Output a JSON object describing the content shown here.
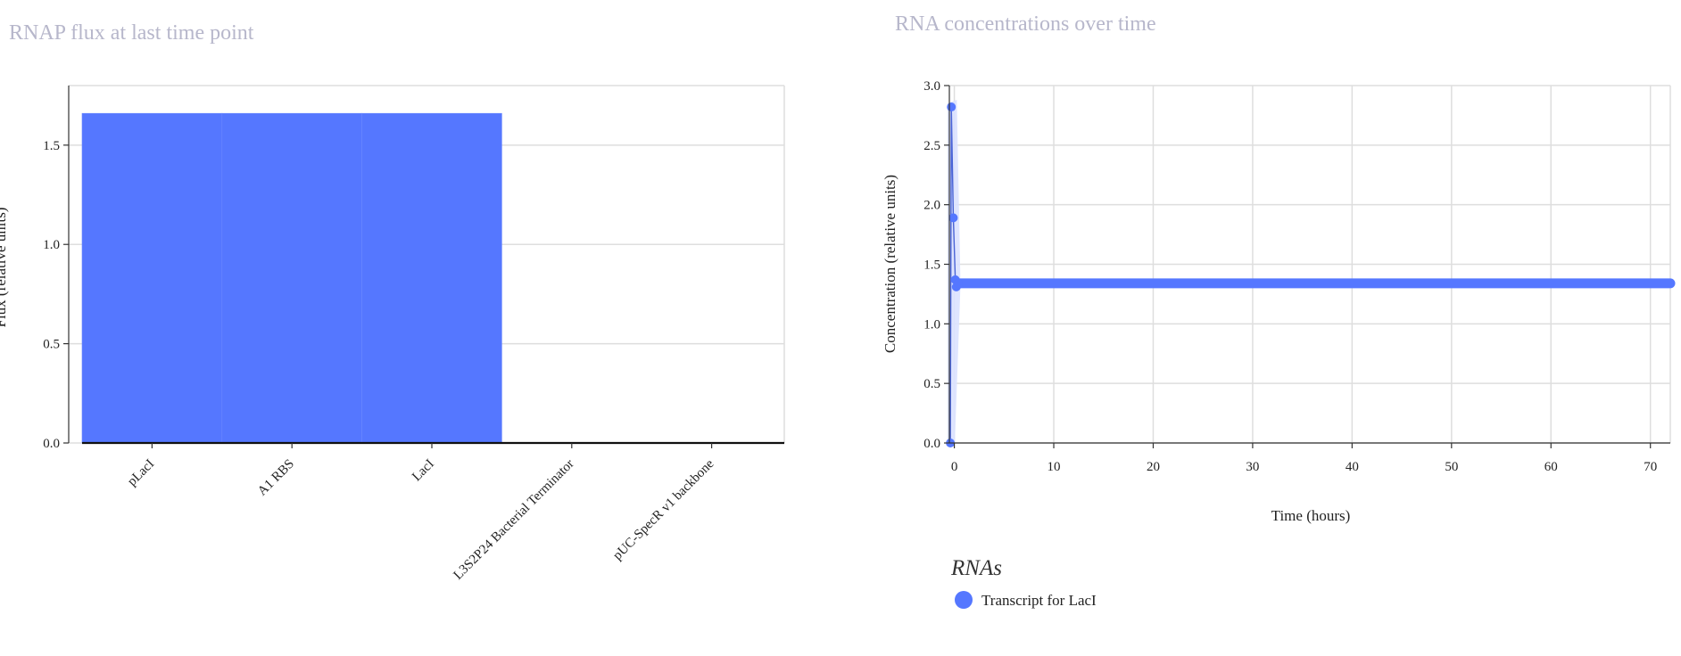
{
  "colors": {
    "accent": "#5577ff",
    "band": "#dbe2ff",
    "title": "#b7b7cb",
    "grid": "#dedede"
  },
  "chart_data": [
    {
      "type": "bar",
      "title": "RNAP flux at last time point",
      "xlabel": "",
      "ylabel": "Flux (relative units)",
      "categories": [
        "pLacI",
        "A1 RBS",
        "LacI",
        "L3S2P24 Bacterial Terminator",
        "pUC-SpecR v1 backbone"
      ],
      "values": [
        1.66,
        1.66,
        1.66,
        0,
        0
      ],
      "ylim": [
        0,
        1.8
      ],
      "yticks": [
        "0.0",
        "0.5",
        "1.0",
        "1.5"
      ],
      "grid": true
    },
    {
      "type": "line",
      "title": "RNA concentrations over time",
      "xlabel": "Time (hours)",
      "ylabel": "Concentration (relative units)",
      "xlim": [
        -0.5,
        72
      ],
      "ylim": [
        0,
        3.0
      ],
      "xticks": [
        "0",
        "10",
        "20",
        "30",
        "40",
        "50",
        "60",
        "70"
      ],
      "yticks": [
        "0.0",
        "0.5",
        "1.0",
        "1.5",
        "2.0",
        "2.5",
        "3.0"
      ],
      "grid": true,
      "legend": {
        "title": "RNAs",
        "placement": "bottom-left"
      },
      "series": [
        {
          "name": "Transcript for LacI",
          "points": [
            [
              -0.4,
              0
            ],
            [
              -0.3,
              2.82
            ],
            [
              -0.1,
              1.89
            ],
            [
              0.1,
              1.37
            ],
            [
              0.2,
              1.31
            ],
            [
              0.4,
              1.34
            ],
            [
              72,
              1.34
            ]
          ],
          "plateau": {
            "x_start": 0.4,
            "x_end": 72,
            "y": 1.34
          }
        }
      ]
    }
  ]
}
